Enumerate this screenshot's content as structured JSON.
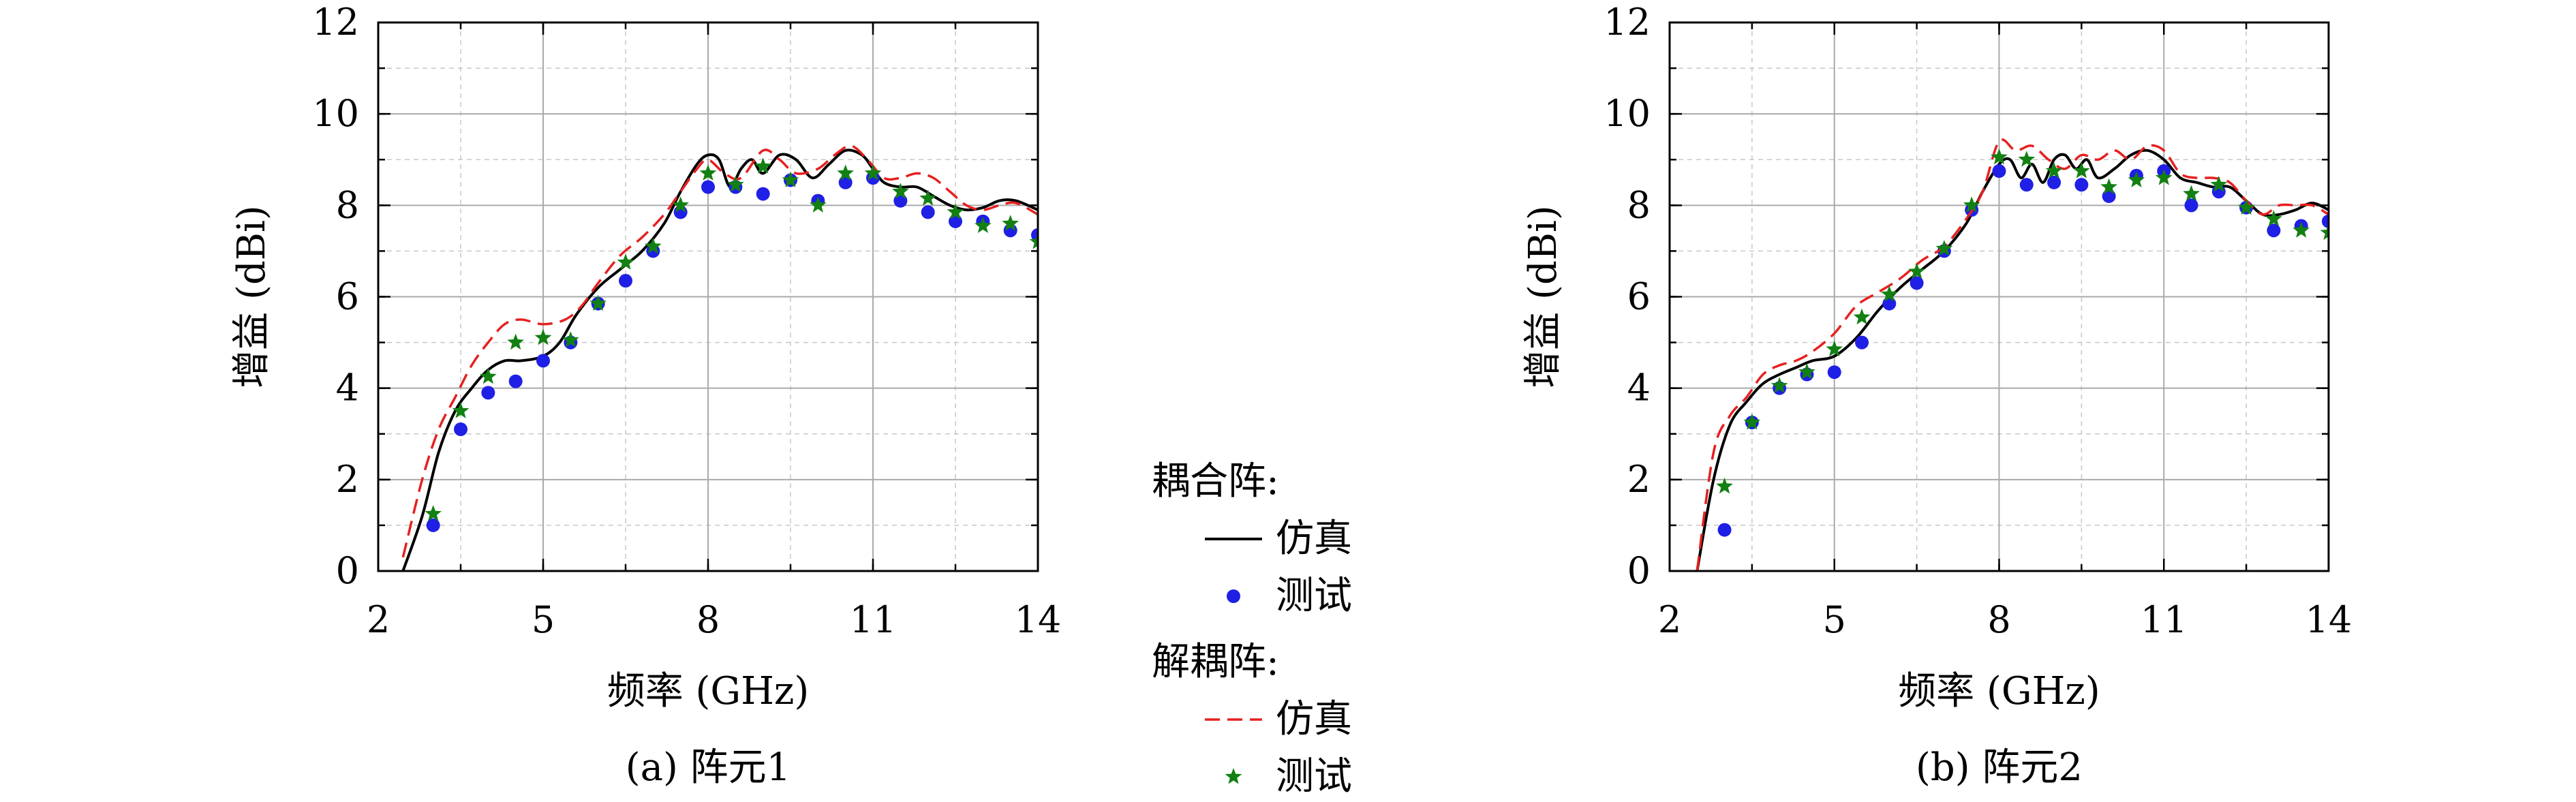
{
  "chart_data": [
    {
      "type": "line",
      "caption": "(a) 阵元1",
      "xlabel": "频率 (GHz)",
      "ylabel": "增益 (dBi)",
      "xlim": [
        2,
        14
      ],
      "ylim": [
        0,
        12
      ],
      "xticks": [
        2,
        5,
        8,
        11,
        14
      ],
      "yticks": [
        0,
        2,
        4,
        6,
        8,
        10,
        12
      ],
      "grid": true,
      "series": [
        {
          "group": "耦合阵",
          "name": "仿真",
          "style": "solid",
          "color": "#000000",
          "x": [
            2.45,
            2.8,
            3.1,
            3.4,
            3.7,
            4.0,
            4.3,
            4.6,
            5.0,
            5.3,
            5.6,
            6.0,
            6.4,
            6.8,
            7.2,
            7.5,
            7.8,
            8.0,
            8.2,
            8.4,
            8.6,
            8.8,
            9.0,
            9.3,
            9.6,
            9.9,
            10.2,
            10.5,
            10.8,
            11.0,
            11.2,
            11.5,
            11.8,
            12.1,
            12.4,
            12.7,
            13.0,
            13.3,
            13.6,
            14.0
          ],
          "y": [
            0.0,
            1.2,
            2.6,
            3.5,
            4.0,
            4.4,
            4.6,
            4.6,
            4.7,
            5.0,
            5.6,
            6.2,
            6.6,
            7.0,
            7.6,
            8.3,
            8.9,
            9.1,
            9.0,
            8.4,
            8.8,
            9.0,
            8.7,
            9.1,
            9.0,
            8.6,
            8.9,
            9.2,
            9.1,
            8.8,
            8.5,
            8.4,
            8.4,
            8.2,
            8.0,
            7.9,
            7.95,
            8.1,
            8.1,
            7.9
          ]
        },
        {
          "group": "耦合阵",
          "name": "测试",
          "style": "dot",
          "color": "#1f1fe6",
          "x": [
            3.0,
            3.5,
            4.0,
            4.5,
            5.0,
            5.5,
            6.0,
            6.5,
            7.0,
            7.5,
            8.0,
            8.5,
            9.0,
            9.5,
            10.0,
            10.5,
            11.0,
            11.5,
            12.0,
            12.5,
            13.0,
            13.5,
            14.0
          ],
          "y": [
            1.0,
            3.1,
            3.9,
            4.15,
            4.6,
            5.0,
            5.85,
            6.35,
            7.0,
            7.85,
            8.4,
            8.4,
            8.25,
            8.55,
            8.1,
            8.5,
            8.6,
            8.1,
            7.85,
            7.65,
            7.65,
            7.45,
            7.35
          ]
        },
        {
          "group": "解耦阵",
          "name": "仿真",
          "style": "dashed",
          "color": "#e62020",
          "x": [
            2.45,
            2.8,
            3.1,
            3.4,
            3.7,
            4.0,
            4.3,
            4.6,
            5.0,
            5.4,
            5.7,
            6.0,
            6.4,
            6.8,
            7.2,
            7.5,
            7.8,
            8.0,
            8.3,
            8.6,
            9.0,
            9.3,
            9.6,
            10.0,
            10.3,
            10.6,
            10.9,
            11.2,
            11.5,
            11.8,
            12.1,
            12.4,
            12.7,
            13.0,
            13.3,
            13.6,
            14.0
          ],
          "y": [
            0.3,
            2.0,
            3.1,
            3.8,
            4.5,
            5.0,
            5.4,
            5.5,
            5.4,
            5.5,
            5.8,
            6.3,
            6.9,
            7.3,
            7.8,
            8.3,
            8.8,
            9.0,
            8.7,
            8.6,
            9.2,
            9.0,
            8.7,
            8.8,
            9.1,
            9.3,
            9.0,
            8.6,
            8.6,
            8.7,
            8.6,
            8.3,
            8.0,
            7.9,
            8.0,
            8.05,
            7.8
          ]
        },
        {
          "group": "解耦阵",
          "name": "测试",
          "style": "star",
          "color": "#128012",
          "x": [
            3.0,
            3.5,
            4.0,
            4.5,
            5.0,
            5.5,
            6.0,
            6.5,
            7.0,
            7.5,
            8.0,
            8.5,
            9.0,
            9.5,
            10.0,
            10.5,
            11.0,
            11.5,
            12.0,
            12.5,
            13.0,
            13.5,
            14.0
          ],
          "y": [
            1.25,
            3.5,
            4.25,
            5.0,
            5.1,
            5.05,
            5.85,
            6.75,
            7.1,
            8.0,
            8.7,
            8.45,
            8.85,
            8.55,
            8.0,
            8.7,
            8.7,
            8.3,
            8.15,
            7.85,
            7.55,
            7.6,
            7.2
          ]
        }
      ]
    },
    {
      "type": "line",
      "caption": "(b) 阵元2",
      "xlabel": "频率 (GHz)",
      "ylabel": "增益 (dBi)",
      "xlim": [
        2,
        14
      ],
      "ylim": [
        0,
        12
      ],
      "xticks": [
        2,
        5,
        8,
        11,
        14
      ],
      "yticks": [
        0,
        2,
        4,
        6,
        8,
        10,
        12
      ],
      "grid": true,
      "series": [
        {
          "group": "耦合阵",
          "name": "仿真",
          "style": "solid",
          "color": "#000000",
          "x": [
            2.5,
            2.8,
            3.1,
            3.4,
            3.7,
            4.0,
            4.3,
            4.6,
            5.0,
            5.4,
            5.8,
            6.2,
            6.6,
            7.0,
            7.4,
            7.7,
            8.0,
            8.2,
            8.4,
            8.6,
            8.8,
            9.0,
            9.2,
            9.4,
            9.6,
            9.8,
            10.1,
            10.4,
            10.7,
            11.0,
            11.3,
            11.6,
            11.9,
            12.2,
            12.5,
            12.8,
            13.1,
            13.4,
            13.7,
            14.0
          ],
          "y": [
            0.0,
            2.0,
            3.2,
            3.7,
            4.1,
            4.3,
            4.45,
            4.6,
            4.7,
            5.1,
            5.7,
            6.2,
            6.6,
            7.0,
            7.6,
            8.3,
            8.9,
            9.0,
            8.6,
            8.9,
            8.5,
            9.0,
            9.1,
            8.8,
            9.0,
            8.6,
            8.8,
            9.1,
            9.2,
            9.0,
            8.6,
            8.5,
            8.4,
            8.4,
            8.1,
            7.8,
            7.8,
            7.9,
            8.05,
            7.9
          ]
        },
        {
          "group": "耦合阵",
          "name": "测试",
          "style": "dot",
          "color": "#1f1fe6",
          "x": [
            3.0,
            3.5,
            4.0,
            4.5,
            5.0,
            5.5,
            6.0,
            6.5,
            7.0,
            7.5,
            8.0,
            8.5,
            9.0,
            9.5,
            10.0,
            10.5,
            11.0,
            11.5,
            12.0,
            12.5,
            13.0,
            13.5,
            14.0
          ],
          "y": [
            0.9,
            3.25,
            4.0,
            4.3,
            4.35,
            5.0,
            5.85,
            6.3,
            7.0,
            7.9,
            8.75,
            8.45,
            8.5,
            8.45,
            8.2,
            8.65,
            8.75,
            8.0,
            8.3,
            7.95,
            7.45,
            7.55,
            7.65
          ]
        },
        {
          "group": "解耦阵",
          "name": "仿真",
          "style": "dashed",
          "color": "#e62020",
          "x": [
            2.5,
            2.8,
            3.1,
            3.4,
            3.7,
            4.0,
            4.3,
            4.6,
            5.0,
            5.4,
            5.8,
            6.2,
            6.6,
            7.0,
            7.4,
            7.7,
            8.0,
            8.3,
            8.6,
            8.9,
            9.2,
            9.5,
            9.8,
            10.1,
            10.4,
            10.7,
            11.0,
            11.3,
            11.6,
            11.9,
            12.2,
            12.5,
            12.8,
            13.1,
            13.4,
            13.7,
            14.0
          ],
          "y": [
            0.0,
            2.6,
            3.4,
            3.8,
            4.3,
            4.5,
            4.6,
            4.8,
            5.2,
            5.8,
            6.1,
            6.4,
            6.8,
            7.1,
            7.7,
            8.3,
            9.4,
            9.2,
            9.3,
            9.0,
            8.8,
            9.1,
            9.0,
            9.2,
            9.0,
            9.3,
            9.2,
            8.7,
            8.6,
            8.6,
            8.5,
            8.1,
            7.8,
            8.0,
            8.0,
            8.0,
            7.8
          ]
        },
        {
          "group": "解耦阵",
          "name": "测试",
          "style": "star",
          "color": "#128012",
          "x": [
            3.0,
            3.5,
            4.0,
            4.5,
            5.0,
            5.5,
            6.0,
            6.5,
            7.0,
            7.5,
            8.0,
            8.5,
            9.0,
            9.5,
            10.0,
            10.5,
            11.0,
            11.5,
            12.0,
            12.5,
            13.0,
            13.5,
            14.0
          ],
          "y": [
            1.85,
            3.25,
            4.05,
            4.35,
            4.85,
            5.55,
            6.05,
            6.55,
            7.05,
            8.0,
            9.05,
            9.0,
            8.75,
            8.75,
            8.4,
            8.55,
            8.6,
            8.25,
            8.45,
            7.95,
            7.7,
            7.45,
            7.4
          ]
        }
      ]
    }
  ],
  "legend": {
    "groups": [
      {
        "title": "耦合阵:",
        "items": [
          {
            "label": "仿真",
            "style": "solid"
          },
          {
            "label": "测试",
            "style": "dot"
          }
        ]
      },
      {
        "title": "解耦阵:",
        "items": [
          {
            "label": "仿真",
            "style": "dashed"
          },
          {
            "label": "测试",
            "style": "star"
          }
        ]
      }
    ]
  }
}
